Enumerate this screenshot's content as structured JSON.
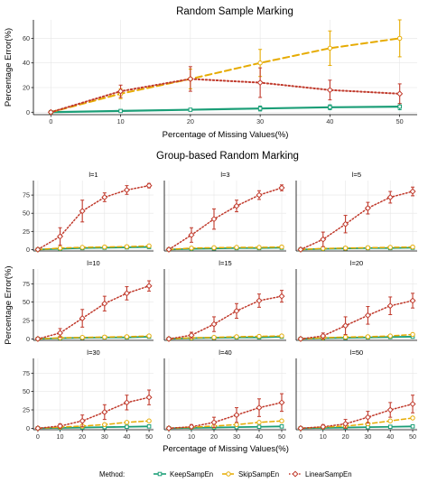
{
  "colors": {
    "KeepSampEn": "#1b9e77",
    "SkipSampEn": "#e6ab02",
    "LinearSampEn": "#c0392b"
  },
  "legend": {
    "title": "Method:",
    "items": [
      "KeepSampEn",
      "SkipSampEn",
      "LinearSampEn"
    ]
  },
  "chart_data": [
    {
      "type": "line",
      "title": "Random Sample Marking",
      "xlabel": "Percentage of Missing Values(%)",
      "ylabel": "Percentage Error(%)",
      "x": [
        0,
        10,
        20,
        30,
        40,
        50
      ],
      "xticks": [
        "0",
        "10",
        "20",
        "30",
        "40",
        "50"
      ],
      "yticks": [
        "0",
        "20",
        "40",
        "60"
      ],
      "xlim": [
        0,
        50
      ],
      "ylim": [
        0,
        75
      ],
      "grid": true,
      "series": [
        {
          "name": "KeepSampEn",
          "values": [
            0,
            1,
            2,
            3,
            4,
            4.5
          ],
          "err": [
            0.5,
            1,
            1,
            2,
            2,
            2.5
          ]
        },
        {
          "name": "SkipSampEn",
          "values": [
            0,
            15,
            27,
            40,
            52,
            60
          ],
          "err": [
            0.5,
            4,
            8,
            11,
            14,
            15
          ]
        },
        {
          "name": "LinearSampEn",
          "values": [
            0,
            17,
            27,
            24,
            18,
            15
          ],
          "err": [
            0.5,
            5,
            10,
            12,
            8,
            8
          ]
        }
      ]
    },
    {
      "type": "line",
      "title": "Group-based Random Marking",
      "xlabel": "Percentage of Missing Values(%)",
      "ylabel": "Percentage Error(%)",
      "x": [
        0,
        10,
        20,
        30,
        40,
        50
      ],
      "xticks": [
        "0",
        "10",
        "20",
        "30",
        "40",
        "50"
      ],
      "yticks": [
        "0",
        "25",
        "50",
        "75"
      ],
      "ylim": [
        0,
        95
      ],
      "grid": true,
      "facets": [
        {
          "label": "l=1",
          "keep": [
            0,
            1,
            2,
            2.5,
            3,
            3.5
          ],
          "skip": [
            0,
            2,
            3,
            3.5,
            4,
            5
          ],
          "linear": [
            0,
            18,
            53,
            72,
            82,
            88
          ],
          "linear_err": [
            0.5,
            12,
            15,
            6,
            6,
            3
          ]
        },
        {
          "label": "l=3",
          "keep": [
            0,
            1,
            1.5,
            2,
            2,
            2.5
          ],
          "skip": [
            0,
            2,
            2.5,
            3,
            3,
            3.5
          ],
          "linear": [
            0,
            20,
            42,
            60,
            75,
            85
          ],
          "linear_err": [
            0.5,
            10,
            14,
            8,
            6,
            4
          ]
        },
        {
          "label": "l=5",
          "keep": [
            0,
            1,
            1.5,
            2,
            2,
            2.5
          ],
          "skip": [
            0,
            1.5,
            2,
            2.5,
            3,
            3.5
          ],
          "linear": [
            0,
            14,
            35,
            57,
            72,
            80
          ],
          "linear_err": [
            0.5,
            10,
            12,
            8,
            8,
            6
          ]
        },
        {
          "label": "l=10",
          "keep": [
            0,
            1,
            1.5,
            2,
            2,
            3
          ],
          "skip": [
            0,
            1.5,
            2,
            2.5,
            3,
            4
          ],
          "linear": [
            0,
            8,
            28,
            48,
            62,
            72
          ],
          "linear_err": [
            0.5,
            6,
            12,
            10,
            9,
            7
          ]
        },
        {
          "label": "l=15",
          "keep": [
            0,
            1,
            1.5,
            2,
            2,
            3
          ],
          "skip": [
            0,
            1.5,
            2,
            3,
            3.5,
            4
          ],
          "linear": [
            0,
            5,
            20,
            38,
            52,
            58
          ],
          "linear_err": [
            0.5,
            4,
            10,
            10,
            9,
            8
          ]
        },
        {
          "label": "l=20",
          "keep": [
            0,
            1,
            1.5,
            2,
            2.5,
            3
          ],
          "skip": [
            0,
            1.5,
            2.5,
            3,
            4,
            6
          ],
          "linear": [
            0,
            4,
            18,
            32,
            45,
            52
          ],
          "linear_err": [
            0.5,
            4,
            12,
            12,
            12,
            10
          ]
        },
        {
          "label": "l=30",
          "keep": [
            0,
            0.5,
            1,
            1.5,
            2,
            2.5
          ],
          "skip": [
            0,
            1.5,
            3,
            5,
            8,
            10
          ],
          "linear": [
            0,
            3,
            10,
            22,
            35,
            42
          ],
          "linear_err": [
            0.5,
            3,
            8,
            10,
            10,
            10
          ]
        },
        {
          "label": "l=40",
          "keep": [
            0,
            0.5,
            1,
            1.5,
            2,
            2.5
          ],
          "skip": [
            0,
            1.5,
            3,
            5,
            8,
            10
          ],
          "linear": [
            0,
            2,
            8,
            18,
            28,
            35
          ],
          "linear_err": [
            0.5,
            3,
            7,
            10,
            12,
            12
          ]
        },
        {
          "label": "l=50",
          "keep": [
            0,
            0.5,
            1,
            1.5,
            2,
            2.5
          ],
          "skip": [
            0,
            1.5,
            3,
            6,
            10,
            14
          ],
          "linear": [
            0,
            2,
            6,
            15,
            25,
            33
          ],
          "linear_err": [
            0.5,
            3,
            6,
            8,
            10,
            12
          ]
        }
      ]
    }
  ]
}
